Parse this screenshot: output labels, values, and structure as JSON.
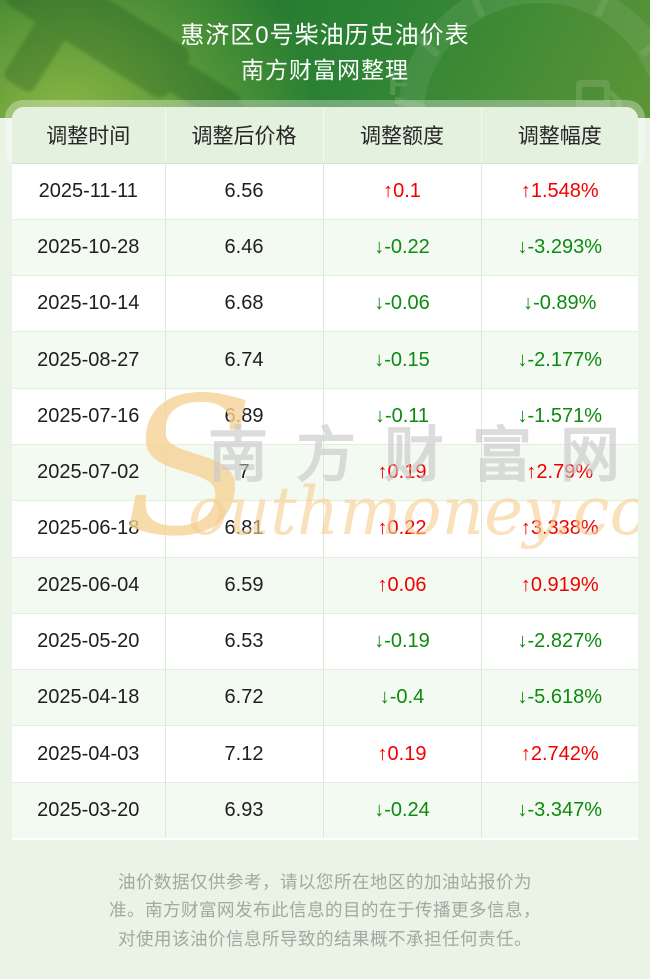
{
  "header": {
    "title": "惠济区0号柴油历史油价表",
    "subtitle": "南方财富网整理"
  },
  "table": {
    "columns": [
      "调整时间",
      "调整后价格",
      "调整额度",
      "调整幅度"
    ],
    "rows": [
      {
        "date": "2025-11-11",
        "price": "6.56",
        "amount": "↑0.1",
        "percent": "↑1.548%",
        "direction": "up"
      },
      {
        "date": "2025-10-28",
        "price": "6.46",
        "amount": "↓-0.22",
        "percent": "↓-3.293%",
        "direction": "down"
      },
      {
        "date": "2025-10-14",
        "price": "6.68",
        "amount": "↓-0.06",
        "percent": "↓-0.89%",
        "direction": "down"
      },
      {
        "date": "2025-08-27",
        "price": "6.74",
        "amount": "↓-0.15",
        "percent": "↓-2.177%",
        "direction": "down"
      },
      {
        "date": "2025-07-16",
        "price": "6.89",
        "amount": "↓-0.11",
        "percent": "↓-1.571%",
        "direction": "down"
      },
      {
        "date": "2025-07-02",
        "price": "7",
        "amount": "↑0.19",
        "percent": "↑2.79%",
        "direction": "up"
      },
      {
        "date": "2025-06-18",
        "price": "6.81",
        "amount": "↑0.22",
        "percent": "↑3.338%",
        "direction": "up"
      },
      {
        "date": "2025-06-04",
        "price": "6.59",
        "amount": "↑0.06",
        "percent": "↑0.919%",
        "direction": "up"
      },
      {
        "date": "2025-05-20",
        "price": "6.53",
        "amount": "↓-0.19",
        "percent": "↓-2.827%",
        "direction": "down"
      },
      {
        "date": "2025-04-18",
        "price": "6.72",
        "amount": "↓-0.4",
        "percent": "↓-5.618%",
        "direction": "down"
      },
      {
        "date": "2025-04-03",
        "price": "7.12",
        "amount": "↑0.19",
        "percent": "↑2.742%",
        "direction": "up"
      },
      {
        "date": "2025-03-20",
        "price": "6.93",
        "amount": "↓-0.24",
        "percent": "↓-3.347%",
        "direction": "down"
      }
    ]
  },
  "colors": {
    "up_red": "#f20000",
    "down_green": "#0d8a10",
    "banner_green_dark": "#1d6b2a",
    "banner_green_light": "#5d9537",
    "table_header_bg": "#e4f1df",
    "row_alt_bg": "#f3faf1",
    "page_bg": "#e9f3e6"
  },
  "watermark": {
    "s_letter": "S",
    "cjk": "南方财富网",
    "latin": "outhmoney.com"
  },
  "footer": {
    "lines": [
      "油价数据仅供参考，请以您所在地区的加油站报价为",
      "准。南方财富网发布此信息的目的在于传播更多信息，",
      "对使用该油价信息所导致的结果概不承担任何责任。"
    ]
  }
}
